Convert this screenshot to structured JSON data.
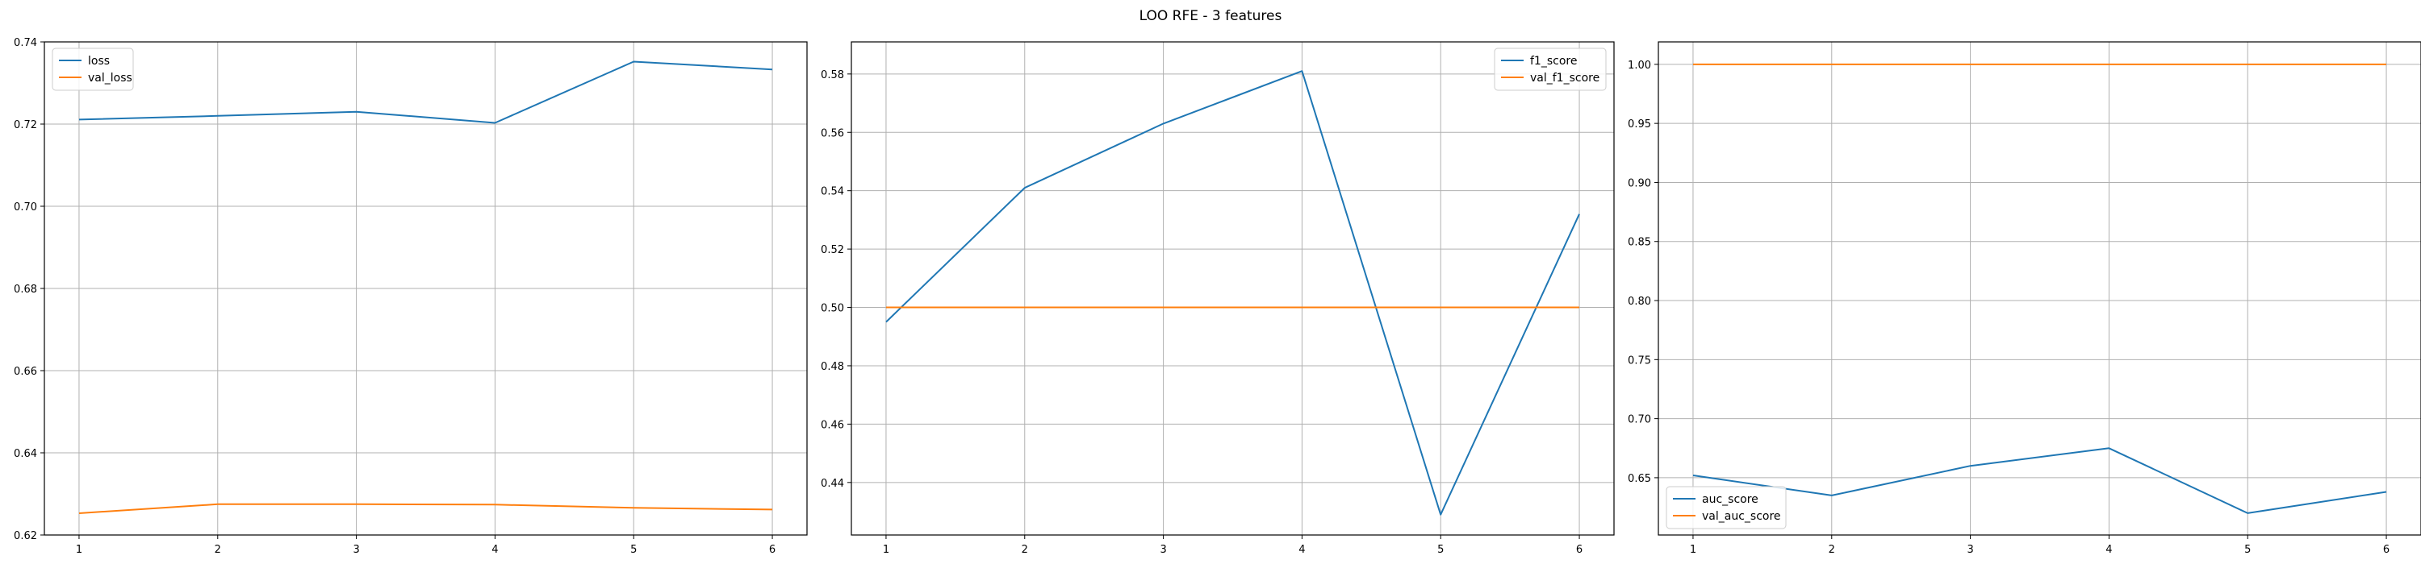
{
  "figure": {
    "title": "LOO RFE - 3 features"
  },
  "colors": {
    "series_1": "#1f77b4",
    "series_2": "#ff7f0e",
    "grid": "#b0b0b0",
    "axes": "#000000"
  },
  "chart_data": [
    {
      "type": "line",
      "title": "",
      "xlabel": "",
      "ylabel": "",
      "x": [
        1,
        2,
        3,
        4,
        5,
        6
      ],
      "xlim": [
        0.75,
        6.25
      ],
      "ylim": [
        0.62,
        0.74
      ],
      "xticks": [
        1,
        2,
        3,
        4,
        5,
        6
      ],
      "yticks": [
        0.62,
        0.64,
        0.66,
        0.68,
        0.7,
        0.72,
        0.74
      ],
      "ytick_labels": [
        "0.62",
        "0.64",
        "0.66",
        "0.68",
        "0.70",
        "0.72",
        "0.74"
      ],
      "grid": true,
      "legend": "upper left",
      "series": [
        {
          "name": "loss",
          "color": "#1f77b4",
          "values": [
            0.7211,
            0.722,
            0.723,
            0.7203,
            0.7352,
            0.7333
          ]
        },
        {
          "name": "val_loss",
          "color": "#ff7f0e",
          "values": [
            0.6253,
            0.6275,
            0.6275,
            0.6274,
            0.6266,
            0.6262
          ]
        }
      ]
    },
    {
      "type": "line",
      "title": "",
      "xlabel": "",
      "ylabel": "",
      "x": [
        1,
        2,
        3,
        4,
        5,
        6
      ],
      "xlim": [
        0.75,
        6.25
      ],
      "ylim": [
        0.422,
        0.591
      ],
      "xticks": [
        1,
        2,
        3,
        4,
        5,
        6
      ],
      "yticks": [
        0.44,
        0.46,
        0.48,
        0.5,
        0.52,
        0.54,
        0.56,
        0.58
      ],
      "ytick_labels": [
        "0.44",
        "0.46",
        "0.48",
        "0.50",
        "0.52",
        "0.54",
        "0.56",
        "0.58"
      ],
      "grid": true,
      "legend": "upper right",
      "series": [
        {
          "name": "f1_score",
          "color": "#1f77b4",
          "values": [
            0.495,
            0.541,
            0.563,
            0.581,
            0.429,
            0.532
          ]
        },
        {
          "name": "val_f1_score",
          "color": "#ff7f0e",
          "values": [
            0.5,
            0.5,
            0.5,
            0.5,
            0.5,
            0.5
          ]
        }
      ]
    },
    {
      "type": "line",
      "title": "",
      "xlabel": "",
      "ylabel": "",
      "x": [
        1,
        2,
        3,
        4,
        5,
        6
      ],
      "xlim": [
        0.75,
        6.25
      ],
      "ylim": [
        0.6015,
        1.019
      ],
      "xticks": [
        1,
        2,
        3,
        4,
        5,
        6
      ],
      "yticks": [
        0.65,
        0.7,
        0.75,
        0.8,
        0.85,
        0.9,
        0.95,
        1.0
      ],
      "ytick_labels": [
        "0.65",
        "0.70",
        "0.75",
        "0.80",
        "0.85",
        "0.90",
        "0.95",
        "1.00"
      ],
      "grid": true,
      "legend": "lower left",
      "series": [
        {
          "name": "auc_score",
          "color": "#1f77b4",
          "values": [
            0.652,
            0.635,
            0.66,
            0.675,
            0.62,
            0.638
          ]
        },
        {
          "name": "val_auc_score",
          "color": "#ff7f0e",
          "values": [
            1.0,
            1.0,
            1.0,
            1.0,
            1.0,
            1.0
          ]
        }
      ]
    }
  ]
}
